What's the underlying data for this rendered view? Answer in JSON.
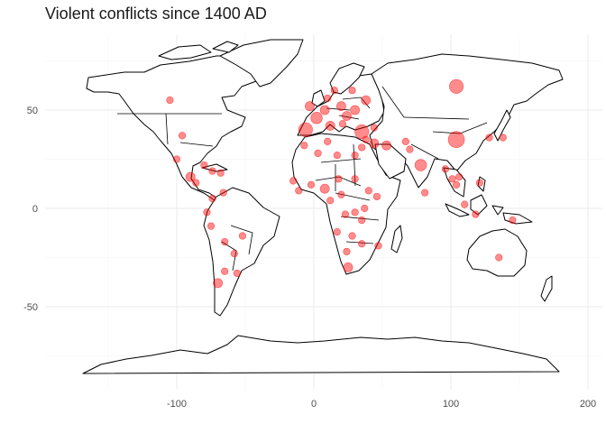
{
  "title": "Violent conflicts since 1400 AD",
  "chart_data": {
    "type": "scatter",
    "title": "Violent conflicts since 1400 AD",
    "xlabel": "",
    "ylabel": "",
    "xlim": [
      -185,
      205
    ],
    "ylim": [
      -90,
      90
    ],
    "x_ticks": [
      -100,
      0,
      100,
      200
    ],
    "y_ticks": [
      -50,
      0,
      50
    ],
    "grid": true,
    "legend": "none",
    "marker_color": "#ff0000",
    "points": [
      {
        "lon": -105,
        "lat": 55,
        "size": 2
      },
      {
        "lon": -96,
        "lat": 37,
        "size": 2
      },
      {
        "lon": -100,
        "lat": 25,
        "size": 2
      },
      {
        "lon": -90,
        "lat": 16,
        "size": 3
      },
      {
        "lon": -86,
        "lat": 13,
        "size": 2
      },
      {
        "lon": -80,
        "lat": 22,
        "size": 2
      },
      {
        "lon": -74,
        "lat": 19,
        "size": 2
      },
      {
        "lon": -68,
        "lat": 18,
        "size": 2
      },
      {
        "lon": -74,
        "lat": 5,
        "size": 2
      },
      {
        "lon": -66,
        "lat": 8,
        "size": 2
      },
      {
        "lon": -78,
        "lat": -2,
        "size": 2
      },
      {
        "lon": -75,
        "lat": -9,
        "size": 2
      },
      {
        "lon": -65,
        "lat": -17,
        "size": 2
      },
      {
        "lon": -52,
        "lat": -14,
        "size": 2
      },
      {
        "lon": -58,
        "lat": -23,
        "size": 2
      },
      {
        "lon": -65,
        "lat": -32,
        "size": 2
      },
      {
        "lon": -70,
        "lat": -38,
        "size": 3
      },
      {
        "lon": -56,
        "lat": -33,
        "size": 2
      },
      {
        "lon": -3,
        "lat": 52,
        "size": 3
      },
      {
        "lon": -6,
        "lat": 40,
        "size": 5
      },
      {
        "lon": 2,
        "lat": 46,
        "size": 4
      },
      {
        "lon": 8,
        "lat": 50,
        "size": 3
      },
      {
        "lon": 12,
        "lat": 42,
        "size": 3
      },
      {
        "lon": 10,
        "lat": 56,
        "size": 2
      },
      {
        "lon": 15,
        "lat": 60,
        "size": 2
      },
      {
        "lon": 20,
        "lat": 52,
        "size": 3
      },
      {
        "lon": 24,
        "lat": 47,
        "size": 3
      },
      {
        "lon": 21,
        "lat": 43,
        "size": 2
      },
      {
        "lon": 30,
        "lat": 50,
        "size": 3
      },
      {
        "lon": 38,
        "lat": 55,
        "size": 3
      },
      {
        "lon": 28,
        "lat": 60,
        "size": 2
      },
      {
        "lon": 35,
        "lat": 39,
        "size": 5
      },
      {
        "lon": 44,
        "lat": 41,
        "size": 2
      },
      {
        "lon": 44,
        "lat": 33,
        "size": 3
      },
      {
        "lon": 38,
        "lat": 35,
        "size": 2
      },
      {
        "lon": 35,
        "lat": 31,
        "size": 2
      },
      {
        "lon": 30,
        "lat": 27,
        "size": 2
      },
      {
        "lon": 53,
        "lat": 32,
        "size": 3
      },
      {
        "lon": 67,
        "lat": 34,
        "size": 2
      },
      {
        "lon": 70,
        "lat": 30,
        "size": 2
      },
      {
        "lon": 78,
        "lat": 22,
        "size": 4
      },
      {
        "lon": 81,
        "lat": 8,
        "size": 2
      },
      {
        "lon": 96,
        "lat": 20,
        "size": 2
      },
      {
        "lon": 101,
        "lat": 15,
        "size": 2
      },
      {
        "lon": 106,
        "lat": 16,
        "size": 2
      },
      {
        "lon": 104,
        "lat": 12,
        "size": 2
      },
      {
        "lon": 104,
        "lat": 35,
        "size": 6
      },
      {
        "lon": 104,
        "lat": 62,
        "size": 5
      },
      {
        "lon": 110,
        "lat": 2,
        "size": 2
      },
      {
        "lon": 121,
        "lat": 13,
        "size": 2
      },
      {
        "lon": 118,
        "lat": -3,
        "size": 2
      },
      {
        "lon": 128,
        "lat": 36,
        "size": 2
      },
      {
        "lon": 138,
        "lat": 36,
        "size": 2
      },
      {
        "lon": 145,
        "lat": -6,
        "size": 2
      },
      {
        "lon": 135,
        "lat": -25,
        "size": 2
      },
      {
        "lon": -7,
        "lat": 32,
        "size": 2
      },
      {
        "lon": 3,
        "lat": 28,
        "size": 2
      },
      {
        "lon": 10,
        "lat": 34,
        "size": 2
      },
      {
        "lon": 17,
        "lat": 27,
        "size": 2
      },
      {
        "lon": -15,
        "lat": 14,
        "size": 2
      },
      {
        "lon": -11,
        "lat": 9,
        "size": 2
      },
      {
        "lon": -2,
        "lat": 12,
        "size": 2
      },
      {
        "lon": 8,
        "lat": 10,
        "size": 3
      },
      {
        "lon": 18,
        "lat": 15,
        "size": 2
      },
      {
        "lon": 30,
        "lat": 15,
        "size": 2
      },
      {
        "lon": 40,
        "lat": 9,
        "size": 2
      },
      {
        "lon": 46,
        "lat": 6,
        "size": 2
      },
      {
        "lon": 20,
        "lat": 7,
        "size": 2
      },
      {
        "lon": 12,
        "lat": 4,
        "size": 2
      },
      {
        "lon": 23,
        "lat": -3,
        "size": 2
      },
      {
        "lon": 30,
        "lat": -2,
        "size": 2
      },
      {
        "lon": 37,
        "lat": 0,
        "size": 2
      },
      {
        "lon": 35,
        "lat": -6,
        "size": 2
      },
      {
        "lon": 17,
        "lat": -12,
        "size": 2
      },
      {
        "lon": 28,
        "lat": -14,
        "size": 2
      },
      {
        "lon": 35,
        "lat": -18,
        "size": 2
      },
      {
        "lon": 47,
        "lat": -19,
        "size": 2
      },
      {
        "lon": 24,
        "lat": -22,
        "size": 2
      },
      {
        "lon": 25,
        "lat": -30,
        "size": 3
      }
    ]
  }
}
